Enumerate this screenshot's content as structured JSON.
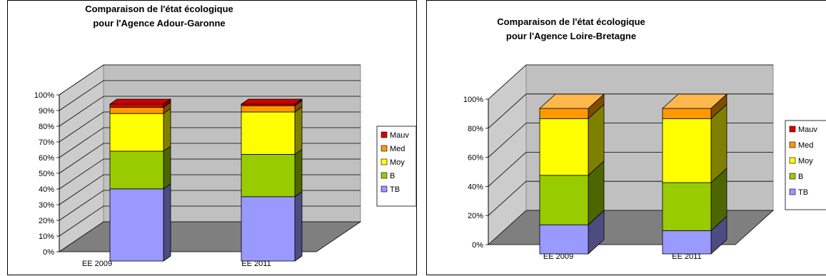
{
  "series_order": [
    "TB",
    "B",
    "Moy",
    "Med",
    "Mauv"
  ],
  "colors": {
    "TB": {
      "front": "#9999ff",
      "side": "#4c4c80",
      "top": "#b2b2ff"
    },
    "B": {
      "front": "#99cc00",
      "side": "#4d6600",
      "top": "#b3d933"
    },
    "Moy": {
      "front": "#ffff00",
      "side": "#808000",
      "top": "#ffff66"
    },
    "Med": {
      "front": "#ff9900",
      "side": "#804c00",
      "top": "#ffb84d"
    },
    "Mauv": {
      "front": "#dd0000",
      "side": "#800000",
      "top": "#cc0000"
    }
  },
  "chart_data": [
    {
      "type": "bar",
      "stacked": true,
      "percent": true,
      "title_lines": [
        "Comparaison de l'état écologique",
        "pour l'Agence Adour-Garonne"
      ],
      "categories": [
        "EE 2009",
        "EE 2011"
      ],
      "y_ticks": [
        "0%",
        "10%",
        "20%",
        "30%",
        "40%",
        "50%",
        "60%",
        "70%",
        "80%",
        "90%",
        "100%"
      ],
      "ylim": [
        0,
        100
      ],
      "legend_placement": "right",
      "series": [
        {
          "name": "TB",
          "values": [
            46,
            41
          ]
        },
        {
          "name": "B",
          "values": [
            24,
            27
          ]
        },
        {
          "name": "Moy",
          "values": [
            24,
            27
          ]
        },
        {
          "name": "Med",
          "values": [
            4,
            4
          ]
        },
        {
          "name": "Mauv",
          "values": [
            2,
            1
          ]
        }
      ]
    },
    {
      "type": "bar",
      "stacked": true,
      "percent": true,
      "title_lines": [
        "Comparaison de l'état écologique",
        "pour l'Agence Loire-Bretagne"
      ],
      "categories": [
        "EE 2009",
        "EE 2011"
      ],
      "y_ticks": [
        "0%",
        "20%",
        "40%",
        "60%",
        "80%",
        "100%"
      ],
      "ylim": [
        0,
        100
      ],
      "legend_placement": "right",
      "series": [
        {
          "name": "TB",
          "values": [
            20,
            16
          ]
        },
        {
          "name": "B",
          "values": [
            34,
            33
          ]
        },
        {
          "name": "Moy",
          "values": [
            39,
            44
          ]
        },
        {
          "name": "Med",
          "values": [
            7,
            7
          ]
        },
        {
          "name": "Mauv",
          "values": [
            0,
            0
          ]
        }
      ]
    }
  ]
}
